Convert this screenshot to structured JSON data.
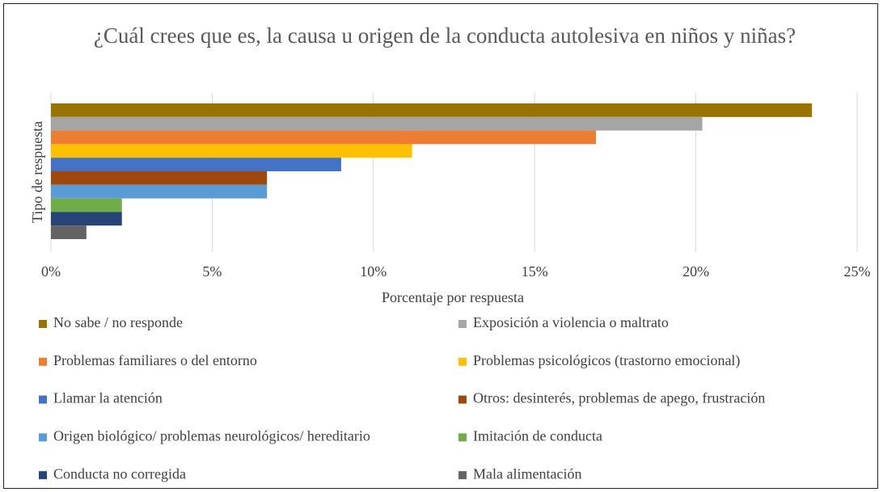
{
  "chart_data": {
    "type": "bar",
    "orientation": "horizontal",
    "title": "¿Cuál crees que es, la causa u origen de la conducta autolesiva en niños y niñas?",
    "y_label": "Tipo de respuesta",
    "x_label": "Porcentaje por respuesta",
    "categories": [
      null
    ],
    "series": [
      {
        "name": "No sabe / no responde",
        "color": "#997300",
        "values": [
          23.6
        ]
      },
      {
        "name": "Exposición  a violencia o maltrato",
        "color": "#a5a5a5",
        "values": [
          20.2
        ]
      },
      {
        "name": "Problemas familiares o del entorno",
        "color": "#ed7d31",
        "values": [
          16.9
        ]
      },
      {
        "name": "Problemas psicológicos (trastorno emocional)",
        "color": "#ffc000",
        "values": [
          11.2
        ]
      },
      {
        "name": "Llamar la atención",
        "color": "#4472c4",
        "values": [
          9.0
        ]
      },
      {
        "name": "Otros: desinterés, problemas de apego, frustración",
        "color": "#9e480e",
        "values": [
          6.7
        ]
      },
      {
        "name": "Origen biológico/ problemas neurológicos/ hereditario",
        "color": "#5b9bd5",
        "values": [
          6.7
        ]
      },
      {
        "name": "Imitación de conducta",
        "color": "#70ad47",
        "values": [
          2.2
        ]
      },
      {
        "name": "Conducta no corregida",
        "color": "#264478",
        "values": [
          2.2
        ]
      },
      {
        "name": "Mala alimentación",
        "color": "#636363",
        "values": [
          1.1
        ]
      }
    ],
    "xlim": [
      0,
      25
    ],
    "xticks": [
      {
        "value": 0,
        "label": "0%"
      },
      {
        "value": 5,
        "label": "5%"
      },
      {
        "value": 10,
        "label": "10%"
      },
      {
        "value": 15,
        "label": "15%"
      },
      {
        "value": 20,
        "label": "20%"
      },
      {
        "value": 25,
        "label": "25%"
      }
    ],
    "grid": true,
    "legend": "bottom"
  }
}
